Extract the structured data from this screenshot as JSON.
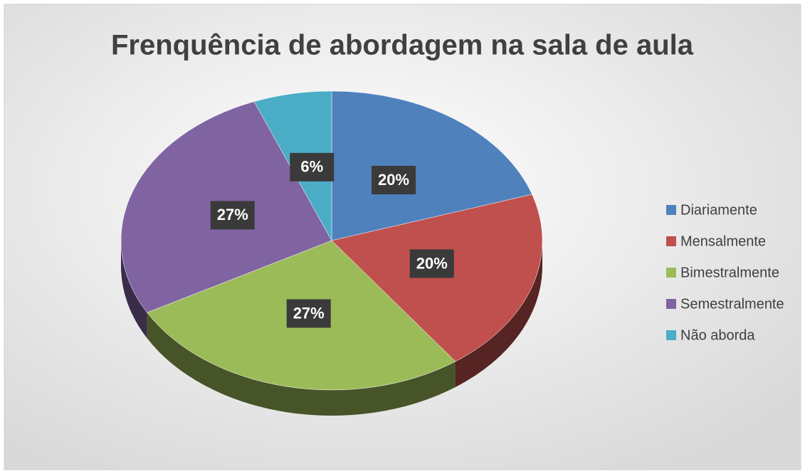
{
  "chart_data": {
    "type": "pie",
    "title": "Frenquência de abordagem na sala de aula",
    "categories": [
      "Diariamente",
      "Mensalmente",
      "Bimestralmente",
      "Semestralmente",
      "Não aborda"
    ],
    "values": [
      20,
      20,
      27,
      27,
      6
    ],
    "value_labels": [
      "20%",
      "20%",
      "27%",
      "27%",
      "6%"
    ],
    "colors": [
      "#4f81bd",
      "#c0504d",
      "#9bbb59",
      "#8064a2",
      "#4bacc6"
    ],
    "legend": "right"
  }
}
